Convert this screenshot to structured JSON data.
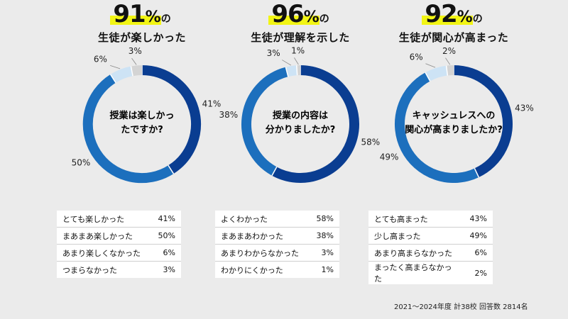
{
  "chart_data": [
    {
      "type": "pie",
      "headline_value": "91",
      "headline_pct": "%",
      "headline_suffix": "の",
      "subtitle": "生徒が楽しかった",
      "question_lines": [
        "授業は楽しかっ",
        "たですか?"
      ],
      "slices": [
        {
          "label": "とても楽しかった",
          "value": 41,
          "value_label": "41%",
          "color": "#0a3d91"
        },
        {
          "label": "まあまあ楽しかった",
          "value": 50,
          "value_label": "50%",
          "color": "#1c6fbd"
        },
        {
          "label": "あまり楽しくなかった",
          "value": 6,
          "value_label": "6%",
          "color": "#cde3f5"
        },
        {
          "label": "つまらなかった",
          "value": 3,
          "value_label": "3%",
          "color": "#d4d4d4"
        }
      ]
    },
    {
      "type": "pie",
      "headline_value": "96",
      "headline_pct": "%",
      "headline_suffix": "の",
      "subtitle": "生徒が理解を示した",
      "question_lines": [
        "授業の内容は",
        "分かりましたか?"
      ],
      "slices": [
        {
          "label": "よくわかった",
          "value": 58,
          "value_label": "58%",
          "color": "#0a3d91"
        },
        {
          "label": "まあまあわかった",
          "value": 38,
          "value_label": "38%",
          "color": "#1c6fbd"
        },
        {
          "label": "あまりわからなかった",
          "value": 3,
          "value_label": "3%",
          "color": "#cde3f5"
        },
        {
          "label": "わかりにくかった",
          "value": 1,
          "value_label": "1%",
          "color": "#d4d4d4"
        }
      ]
    },
    {
      "type": "pie",
      "headline_value": "92",
      "headline_pct": "%",
      "headline_suffix": "の",
      "subtitle": "生徒が関心が高まった",
      "question_lines": [
        "キャッシュレスへの",
        "関心が高まりましたか?"
      ],
      "slices": [
        {
          "label": "とても高まった",
          "value": 43,
          "value_label": "43%",
          "color": "#0a3d91"
        },
        {
          "label": "少し高まった",
          "value": 49,
          "value_label": "49%",
          "color": "#1c6fbd"
        },
        {
          "label": "あまり高まらなかった",
          "value": 6,
          "value_label": "6%",
          "color": "#cde3f5"
        },
        {
          "label": "まったく高まらなかった",
          "value": 2,
          "value_label": "2%",
          "color": "#d4d4d4"
        }
      ]
    }
  ],
  "footnote": "2021～2024年度 計38校 回答数 2814名"
}
